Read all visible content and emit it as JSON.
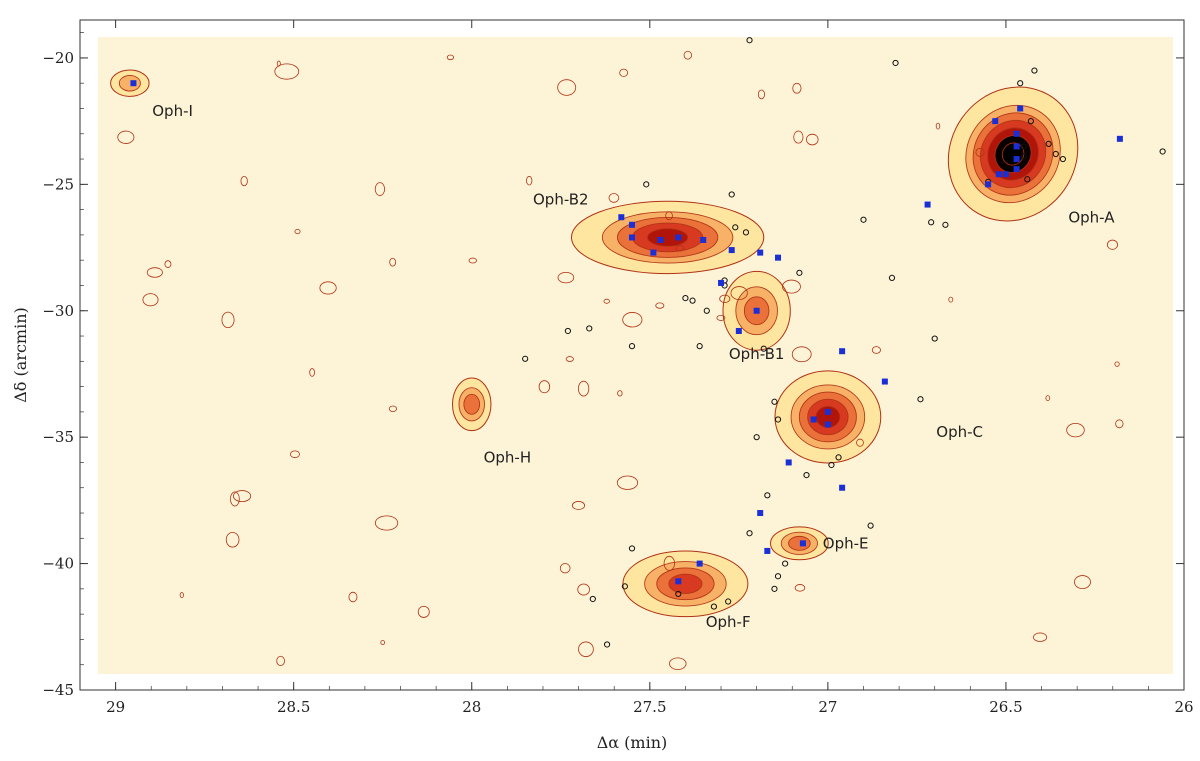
{
  "chart_data": {
    "type": "contour",
    "xlabel": "Δα (min)",
    "ylabel": "Δδ (arcmin)",
    "xlim": [
      29.1,
      26.0
    ],
    "ylim": [
      -45,
      -18.5
    ],
    "x_ticks": [
      {
        "value": 29,
        "label": "29"
      },
      {
        "value": 28.5,
        "label": "28.5"
      },
      {
        "value": 28,
        "label": "28"
      },
      {
        "value": 27.5,
        "label": "27.5"
      },
      {
        "value": 27,
        "label": "27"
      },
      {
        "value": 26.5,
        "label": "26.5"
      },
      {
        "value": 26,
        "label": "26"
      }
    ],
    "y_ticks": [
      {
        "value": -20,
        "label": "−20"
      },
      {
        "value": -25,
        "label": "−25"
      },
      {
        "value": -30,
        "label": "−30"
      },
      {
        "value": -35,
        "label": "−35"
      },
      {
        "value": -40,
        "label": "−40"
      },
      {
        "value": -45,
        "label": "−45"
      }
    ],
    "colors": {
      "background": "#fdf3d6",
      "contour": "#b03214",
      "core_fill": [
        "#ffe6a0",
        "#f8b066",
        "#ea6e38",
        "#d63820",
        "#b01208",
        "#000000"
      ],
      "square_marker": "#1a2fd6",
      "circle_marker": "#111111"
    },
    "clumps": [
      {
        "name": "Oph-A",
        "label": "Oph-A",
        "label_at": [
          26.26,
          -26.5
        ],
        "x": 26.48,
        "y": -23.8,
        "rx": 0.13,
        "ry": 2.1,
        "peak": 6
      },
      {
        "name": "Oph-B2",
        "label": "Oph-B2",
        "label_at": [
          27.75,
          -25.8
        ],
        "x": 27.45,
        "y": -27.1,
        "rx": 0.2,
        "ry": 1.1,
        "peak": 4
      },
      {
        "name": "Oph-B1",
        "label": "Oph-B1",
        "label_at": [
          27.2,
          -31.9
        ],
        "x": 27.2,
        "y": -30.0,
        "rx": 0.07,
        "ry": 1.2,
        "peak": 2
      },
      {
        "name": "Oph-C",
        "label": "Oph-C",
        "label_at": [
          26.63,
          -35.0
        ],
        "x": 27.0,
        "y": -34.2,
        "rx": 0.11,
        "ry": 1.4,
        "peak": 4
      },
      {
        "name": "Oph-E",
        "label": "Oph-E",
        "label_at": [
          26.95,
          -39.4
        ],
        "x": 27.08,
        "y": -39.2,
        "rx": 0.06,
        "ry": 0.5,
        "peak": 2
      },
      {
        "name": "Oph-F",
        "label": "Oph-F",
        "label_at": [
          27.28,
          -42.5
        ],
        "x": 27.4,
        "y": -40.8,
        "rx": 0.13,
        "ry": 1.0,
        "peak": 3
      },
      {
        "name": "Oph-H",
        "label": "Oph-H",
        "label_at": [
          27.9,
          -36.0
        ],
        "x": 28.0,
        "y": -33.7,
        "rx": 0.04,
        "ry": 0.8,
        "peak": 2
      },
      {
        "name": "Oph-I",
        "label": "Oph-I",
        "label_at": [
          28.84,
          -22.3
        ],
        "x": 28.96,
        "y": -21.0,
        "rx": 0.04,
        "ry": 0.4,
        "peak": 1
      }
    ],
    "square_sources": [
      [
        28.95,
        -21.0
      ],
      [
        26.46,
        -22.0
      ],
      [
        26.53,
        -22.5
      ],
      [
        26.47,
        -23.0
      ],
      [
        26.47,
        -23.5
      ],
      [
        26.47,
        -24.0
      ],
      [
        26.47,
        -24.4
      ],
      [
        26.5,
        -24.6
      ],
      [
        26.52,
        -24.6
      ],
      [
        26.55,
        -25.0
      ],
      [
        26.18,
        -23.2
      ],
      [
        26.72,
        -25.8
      ],
      [
        27.58,
        -26.3
      ],
      [
        27.55,
        -26.6
      ],
      [
        27.55,
        -27.1
      ],
      [
        27.47,
        -27.2
      ],
      [
        27.42,
        -27.1
      ],
      [
        27.35,
        -27.2
      ],
      [
        27.49,
        -27.7
      ],
      [
        27.27,
        -27.6
      ],
      [
        27.19,
        -27.7
      ],
      [
        27.14,
        -27.9
      ],
      [
        27.3,
        -28.9
      ],
      [
        27.25,
        -30.8
      ],
      [
        27.2,
        -30.0
      ],
      [
        26.96,
        -31.6
      ],
      [
        27.04,
        -34.3
      ],
      [
        27.0,
        -34.0
      ],
      [
        27.0,
        -34.5
      ],
      [
        26.84,
        -32.8
      ],
      [
        27.11,
        -36.0
      ],
      [
        26.96,
        -37.0
      ],
      [
        27.19,
        -38.0
      ],
      [
        27.17,
        -39.5
      ],
      [
        27.07,
        -39.2
      ],
      [
        27.42,
        -40.7
      ],
      [
        27.36,
        -40.0
      ]
    ],
    "circle_sources": [
      [
        26.81,
        -20.2
      ],
      [
        26.42,
        -20.5
      ],
      [
        26.46,
        -21.0
      ],
      [
        26.43,
        -22.5
      ],
      [
        26.38,
        -23.4
      ],
      [
        26.36,
        -23.8
      ],
      [
        26.44,
        -24.8
      ],
      [
        26.55,
        -24.9
      ],
      [
        26.45,
        -23.9
      ],
      [
        26.06,
        -23.7
      ],
      [
        26.71,
        -26.5
      ],
      [
        26.9,
        -26.4
      ],
      [
        27.51,
        -25.0
      ],
      [
        27.27,
        -25.4
      ],
      [
        27.26,
        -26.7
      ],
      [
        27.23,
        -26.9
      ],
      [
        27.29,
        -28.8
      ],
      [
        27.29,
        -29.0
      ],
      [
        27.38,
        -29.6
      ],
      [
        27.4,
        -29.5
      ],
      [
        27.34,
        -30.0
      ],
      [
        27.36,
        -31.4
      ],
      [
        27.55,
        -31.4
      ],
      [
        27.67,
        -30.7
      ],
      [
        27.85,
        -31.9
      ],
      [
        27.08,
        -28.5
      ],
      [
        27.18,
        -31.5
      ],
      [
        27.73,
        -30.8
      ],
      [
        26.82,
        -28.7
      ],
      [
        26.67,
        -26.6
      ],
      [
        26.7,
        -31.1
      ],
      [
        26.74,
        -33.5
      ],
      [
        27.15,
        -33.6
      ],
      [
        27.14,
        -34.3
      ],
      [
        27.2,
        -35.0
      ],
      [
        27.06,
        -36.5
      ],
      [
        26.97,
        -35.8
      ],
      [
        26.99,
        -36.1
      ],
      [
        26.88,
        -38.5
      ],
      [
        27.17,
        -37.3
      ],
      [
        27.22,
        -38.8
      ],
      [
        27.12,
        -40.0
      ],
      [
        27.14,
        -40.5
      ],
      [
        27.15,
        -41.0
      ],
      [
        27.32,
        -41.7
      ],
      [
        27.28,
        -41.5
      ],
      [
        27.42,
        -41.2
      ],
      [
        27.57,
        -40.9
      ],
      [
        27.55,
        -39.4
      ],
      [
        27.66,
        -41.4
      ],
      [
        27.62,
        -43.2
      ],
      [
        26.45,
        -23.5
      ],
      [
        26.34,
        -24.0
      ],
      [
        27.22,
        -19.3
      ]
    ]
  }
}
